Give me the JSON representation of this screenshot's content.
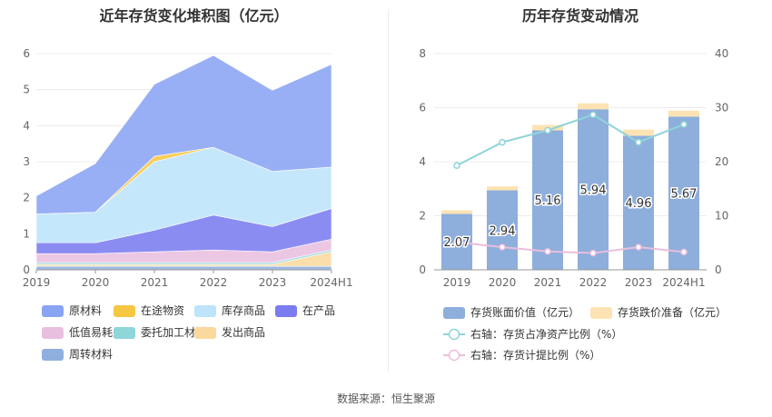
{
  "footer": {
    "source": "数据来源：恒生聚源"
  },
  "colors": {
    "yuancailiao": "#8aa4f4",
    "zaitu": "#f7c744",
    "kucun": "#bde4fb",
    "zaichanpin": "#7b7cf0",
    "dizhi": "#e9bfe0",
    "weituo": "#8fd6d9",
    "fachu": "#fbd99e",
    "zhouzhuan": "#8fb0de",
    "bar_value": "#8eaedc",
    "bar_reserve": "#fde3b3",
    "line_ratio": "#8fd4d9",
    "line_provision": "#ebbedc"
  },
  "chart_data": [
    {
      "type": "area",
      "stacked": true,
      "title": "近年存货变化堆积图（亿元）",
      "categories": [
        "2019",
        "2020",
        "2021",
        "2022",
        "2023",
        "2024H1"
      ],
      "ylim": [
        0,
        6
      ],
      "yticks": [
        "0",
        "1",
        "2",
        "3",
        "4",
        "5",
        "6"
      ],
      "grid": true,
      "series": [
        {
          "name": "周转材料",
          "color_key": "zhouzhuan",
          "values": [
            0.1,
            0.1,
            0.1,
            0.1,
            0.1,
            0.1
          ]
        },
        {
          "name": "发出商品",
          "color_key": "fachu",
          "values": [
            0.05,
            0.05,
            0.05,
            0.05,
            0.05,
            0.4
          ]
        },
        {
          "name": "委托加工材料",
          "color_key": "weituo",
          "values": [
            0.05,
            0.05,
            0.05,
            0.05,
            0.05,
            0.05
          ]
        },
        {
          "name": "低值易耗品",
          "color_key": "dizhi",
          "values": [
            0.25,
            0.25,
            0.3,
            0.35,
            0.3,
            0.3
          ]
        },
        {
          "name": "在产品",
          "color_key": "zaichanpin",
          "values": [
            0.3,
            0.3,
            0.6,
            0.97,
            0.7,
            0.85
          ]
        },
        {
          "name": "库存商品",
          "color_key": "kucun",
          "values": [
            0.8,
            0.85,
            1.9,
            1.88,
            1.53,
            1.15
          ]
        },
        {
          "name": "在途物资",
          "color_key": "zaitu",
          "values": [
            0.0,
            0.0,
            0.15,
            0.0,
            0.0,
            0.0
          ]
        },
        {
          "name": "原材料",
          "color_key": "yuancailiao",
          "values": [
            0.5,
            1.35,
            2.0,
            2.55,
            2.25,
            2.85
          ]
        }
      ],
      "legend": {
        "placement": "bottom",
        "rows": [
          [
            "原材料",
            "在途物资",
            "库存商品",
            "在产品"
          ],
          [
            "低值易耗品",
            "委托加工材料",
            "发出商品"
          ],
          [
            "周转材料"
          ]
        ]
      }
    },
    {
      "type": "bar",
      "stacked": true,
      "title": "历年存货变动情况",
      "categories": [
        "2019",
        "2020",
        "2021",
        "2022",
        "2023",
        "2024H1"
      ],
      "ylim": [
        0,
        8
      ],
      "yticks": [
        "0",
        "2",
        "4",
        "6",
        "8"
      ],
      "y2lim": [
        0,
        40
      ],
      "y2ticks": [
        "0",
        "10",
        "20",
        "30",
        "40"
      ],
      "grid": true,
      "series": [
        {
          "name": "存货账面价值（亿元）",
          "axis": "left",
          "color_key": "bar_value",
          "values": [
            2.07,
            2.94,
            5.16,
            5.94,
            4.96,
            5.67
          ],
          "labels": [
            "2.07",
            "2.94",
            "5.16",
            "5.94",
            "4.96",
            "5.67"
          ]
        },
        {
          "name": "存货跌价准备（亿元）",
          "axis": "left",
          "color_key": "bar_reserve",
          "values": [
            0.13,
            0.15,
            0.2,
            0.22,
            0.23,
            0.22
          ]
        },
        {
          "name": "右轴：存货占净资产比例（%）",
          "axis": "right",
          "type": "line",
          "color_key": "line_ratio",
          "values": [
            19.3,
            23.6,
            25.8,
            28.7,
            23.6,
            26.9
          ]
        },
        {
          "name": "右轴：存货计提比例（%）",
          "axis": "right",
          "type": "line",
          "color_key": "line_provision",
          "values": [
            5.1,
            4.2,
            3.4,
            3.1,
            4.2,
            3.3
          ]
        }
      ],
      "legend": {
        "placement": "bottom",
        "rows": [
          [
            "存货账面价值（亿元）",
            "存货跌价准备（亿元）"
          ],
          [
            "右轴：存货占净资产比例（%）"
          ],
          [
            "右轴：存货计提比例（%）"
          ]
        ]
      }
    }
  ]
}
